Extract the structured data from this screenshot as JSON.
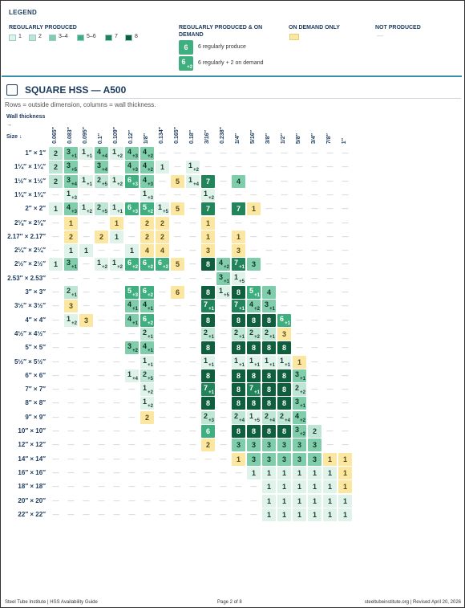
{
  "legend": {
    "title": "LEGEND",
    "regular": {
      "title": "REGULARLY PRODUCED",
      "items": [
        "1",
        "2",
        "3–4",
        "5–6",
        "7",
        "8"
      ]
    },
    "combined": {
      "title": "REGULARLY PRODUCED & ON DEMAND",
      "examples": [
        {
          "main": "6",
          "text": "6 regularly produce"
        },
        {
          "main": "6",
          "extra": "+2",
          "text": "6 regularly + 2 on demand"
        }
      ]
    },
    "on_demand": {
      "title": "ON DEMAND ONLY"
    },
    "not_produced": {
      "title": "NOT PRODUCED",
      "symbol": "—"
    }
  },
  "section": {
    "title": "SQUARE HSS — A500",
    "subtitle": "Rows = outside dimension, columns = wall thickness.",
    "wall_label": "Wall thickness →",
    "size_label": "Size ↓",
    "columns": [
      "0.065″",
      "0.083″",
      "0.095″",
      "0.1″",
      "0.109″",
      "0.12″",
      "1/8″",
      "0.134″",
      "0.165″",
      "0.18″",
      "3/16″",
      "0.238″",
      "1/4″",
      "5/16″",
      "3/8″",
      "1/2″",
      "5/8″",
      "3/4″",
      "7/8″",
      "1″"
    ],
    "rows": [
      {
        "label": "1″ × 1″",
        "cells": [
          [
            "2"
          ],
          [
            "3",
            "+1"
          ],
          [
            "1",
            "+1"
          ],
          [
            "4",
            "+4"
          ],
          [
            "1",
            "+2"
          ],
          [
            "4",
            "+3"
          ],
          [
            "4",
            "+2"
          ],
          "—",
          "—",
          "—",
          "—",
          "—",
          "—",
          "—",
          "—",
          "—",
          "—",
          "—",
          "—",
          "—"
        ]
      },
      {
        "label": "1¼″ × 1¼″",
        "cells": [
          [
            "2"
          ],
          [
            "3",
            "+5"
          ],
          "—",
          [
            "3",
            "+4"
          ],
          "—",
          [
            "4",
            "+3"
          ],
          [
            "4",
            "+2"
          ],
          [
            "1"
          ],
          "—",
          [
            "1",
            "+2"
          ],
          "—",
          "—",
          "—",
          "—",
          "—",
          "—",
          "—",
          "—",
          "—",
          "—"
        ]
      },
      {
        "label": "1½″ × 1½″",
        "cells": [
          [
            "2"
          ],
          [
            "3",
            "+4"
          ],
          [
            "1",
            "+1"
          ],
          [
            "2",
            "+5"
          ],
          [
            "1",
            "+2"
          ],
          [
            "6",
            "+3"
          ],
          [
            "4",
            "+3"
          ],
          "—",
          {
            "only": "5"
          },
          [
            "1",
            "+4"
          ],
          [
            "7"
          ],
          "—",
          [
            "4"
          ],
          "—",
          "—",
          "—",
          "—",
          "—",
          "—",
          "—"
        ]
      },
      {
        "label": "1¾″ × 1¾″",
        "cells": [
          "—",
          [
            "1",
            "+3"
          ],
          "—",
          "—",
          "—",
          "—",
          [
            "1",
            "+3"
          ],
          "—",
          "—",
          "—",
          [
            "1",
            "+2"
          ],
          "—",
          "—",
          "—",
          "—",
          "—",
          "—",
          "—",
          "—",
          "—"
        ]
      },
      {
        "label": "2″ × 2″",
        "cells": [
          [
            "1"
          ],
          [
            "4",
            "+3"
          ],
          [
            "1",
            "+2"
          ],
          [
            "2",
            "+5"
          ],
          [
            "1",
            "+1"
          ],
          [
            "6",
            "+3"
          ],
          [
            "5",
            "+2"
          ],
          [
            "1",
            "+5"
          ],
          {
            "only": "5"
          },
          "—",
          [
            "7"
          ],
          "—",
          [
            "7"
          ],
          {
            "only": "1"
          },
          "—",
          "—",
          "—",
          "—",
          "—",
          "—"
        ]
      },
      {
        "label": "2⅛″ × 2⅛″",
        "cells": [
          "—",
          {
            "only": "1"
          },
          "—",
          "—",
          {
            "only": "1"
          },
          "—",
          {
            "only": "2"
          },
          {
            "only": "2"
          },
          "—",
          "—",
          {
            "only": "1"
          },
          "—",
          "—",
          "—",
          "—",
          "—",
          "—",
          "—",
          "—",
          "—"
        ]
      },
      {
        "label": "2.17″ × 2.17″",
        "cells": [
          "—",
          {
            "only": "2"
          },
          "—",
          {
            "only": "2"
          },
          [
            "1"
          ],
          "—",
          {
            "only": "2"
          },
          {
            "only": "2"
          },
          "—",
          "—",
          {
            "only": "1"
          },
          "—",
          {
            "only": "1"
          },
          "—",
          "—",
          "—",
          "—",
          "—",
          "—",
          "—"
        ]
      },
      {
        "label": "2¼″ × 2¼″",
        "cells": [
          "—",
          [
            "1"
          ],
          [
            "1"
          ],
          "—",
          "—",
          [
            "1"
          ],
          {
            "only": "4"
          },
          {
            "only": "4"
          },
          "—",
          "—",
          {
            "only": "3"
          },
          "—",
          {
            "only": "3"
          },
          "—",
          "—",
          "—",
          "—",
          "—",
          "—",
          "—"
        ]
      },
      {
        "label": "2½″ × 2½″",
        "cells": [
          [
            "1"
          ],
          [
            "3",
            "+1"
          ],
          "—",
          [
            "1",
            "+2"
          ],
          [
            "1",
            "+2"
          ],
          [
            "6",
            "+2"
          ],
          [
            "6",
            "+2"
          ],
          [
            "6",
            "+2"
          ],
          {
            "only": "5"
          },
          "—",
          [
            "8"
          ],
          [
            "4",
            "+2"
          ],
          [
            "7",
            "+1"
          ],
          [
            "3"
          ],
          "—",
          "—",
          "—",
          "—",
          "—",
          "—"
        ]
      },
      {
        "label": "2.53″ × 2.53″",
        "cells": [
          "—",
          "—",
          "—",
          "—",
          "—",
          "—",
          "—",
          "—",
          "—",
          "—",
          "—",
          [
            "3",
            "+1"
          ],
          [
            "1",
            "+5"
          ],
          "—",
          "—",
          "—",
          "—",
          "—",
          "—",
          "—"
        ]
      },
      {
        "label": "3″ × 3″",
        "cells": [
          "—",
          [
            "2",
            "+1"
          ],
          "—",
          "—",
          "—",
          [
            "5",
            "+3"
          ],
          [
            "6",
            "+2"
          ],
          "—",
          {
            "only": "6"
          },
          "—",
          [
            "8"
          ],
          [
            "1",
            "+5"
          ],
          [
            "8"
          ],
          [
            "5",
            "+1"
          ],
          [
            "4"
          ],
          "—",
          "—",
          "—",
          "—",
          "—"
        ]
      },
      {
        "label": "3½″ × 3½″",
        "cells": [
          "—",
          {
            "only": "3"
          },
          "—",
          "—",
          "—",
          [
            "4",
            "+1"
          ],
          [
            "4",
            "+1"
          ],
          "—",
          "—",
          "—",
          [
            "7",
            "+1"
          ],
          "—",
          [
            "7",
            "+1"
          ],
          [
            "4",
            "+2"
          ],
          [
            "3",
            "+1"
          ],
          "—",
          "—",
          "—",
          "—",
          "—"
        ]
      },
      {
        "label": "4″ × 4″",
        "cells": [
          "—",
          [
            "1",
            "+2"
          ],
          {
            "only": "3"
          },
          "—",
          "—",
          [
            "4",
            "+1"
          ],
          [
            "6",
            "+2"
          ],
          "—",
          "—",
          "—",
          [
            "8"
          ],
          "—",
          [
            "8"
          ],
          [
            "8"
          ],
          [
            "8"
          ],
          [
            "6",
            "+1"
          ],
          "—",
          "—",
          "—",
          "—"
        ]
      },
      {
        "label": "4½″ × 4½″",
        "cells": [
          "—",
          "—",
          "—",
          "—",
          "—",
          "—",
          [
            "2",
            "+1"
          ],
          "—",
          "—",
          "—",
          [
            "2",
            "+1"
          ],
          "—",
          [
            "2",
            "+1"
          ],
          [
            "2",
            "+2"
          ],
          [
            "2",
            "+1"
          ],
          {
            "only": "3"
          },
          "—",
          "—",
          "—",
          "—"
        ]
      },
      {
        "label": "5″ × 5″",
        "cells": [
          "—",
          "—",
          "—",
          "—",
          "—",
          [
            "3",
            "+2"
          ],
          [
            "4",
            "+1"
          ],
          "—",
          "—",
          "—",
          [
            "8"
          ],
          "—",
          [
            "8"
          ],
          [
            "8"
          ],
          [
            "8"
          ],
          [
            "8"
          ],
          "—",
          "—",
          "—",
          "—"
        ]
      },
      {
        "label": "5½″ × 5½″",
        "cells": [
          "—",
          "—",
          "—",
          "—",
          "—",
          "—",
          [
            "1",
            "+1"
          ],
          "—",
          "—",
          "—",
          [
            "1",
            "+1"
          ],
          "—",
          [
            "1",
            "+1"
          ],
          [
            "1",
            "+1"
          ],
          [
            "1",
            "+1"
          ],
          [
            "1",
            "+1"
          ],
          {
            "only": "1"
          },
          "—",
          "—",
          "—"
        ]
      },
      {
        "label": "6″ × 6″",
        "cells": [
          "—",
          "—",
          "—",
          "—",
          "—",
          [
            "1",
            "+4"
          ],
          [
            "2",
            "+5"
          ],
          "—",
          "—",
          "—",
          [
            "8"
          ],
          "—",
          [
            "8"
          ],
          [
            "8"
          ],
          [
            "8"
          ],
          [
            "8"
          ],
          [
            "3",
            "+1"
          ],
          "—",
          "—",
          "—"
        ]
      },
      {
        "label": "7″ × 7″",
        "cells": [
          "—",
          "—",
          "—",
          "—",
          "—",
          "—",
          [
            "1",
            "+2"
          ],
          "—",
          "—",
          "—",
          [
            "7",
            "+1"
          ],
          "—",
          [
            "8"
          ],
          [
            "7",
            "+1"
          ],
          [
            "8"
          ],
          [
            "8"
          ],
          [
            "2",
            "+2"
          ],
          "—",
          "—",
          "—"
        ]
      },
      {
        "label": "8″ × 8″",
        "cells": [
          "—",
          "—",
          "—",
          "—",
          "—",
          "—",
          [
            "1",
            "+2"
          ],
          "—",
          "—",
          "—",
          [
            "8"
          ],
          "—",
          [
            "8"
          ],
          [
            "8"
          ],
          [
            "8"
          ],
          [
            "8"
          ],
          [
            "3",
            "+1"
          ],
          "—",
          "—",
          "—"
        ]
      },
      {
        "label": "9″ × 9″",
        "cells": [
          "—",
          "—",
          "—",
          "—",
          "—",
          "—",
          {
            "only": "2"
          },
          "—",
          "—",
          "—",
          [
            "2",
            "+3"
          ],
          "—",
          [
            "2",
            "+4"
          ],
          [
            "1",
            "+5"
          ],
          [
            "2",
            "+4"
          ],
          [
            "2",
            "+4"
          ],
          [
            "4",
            "+2"
          ],
          "—",
          "—",
          "—"
        ]
      },
      {
        "label": "10″ × 10″",
        "cells": [
          "—",
          "—",
          "—",
          "—",
          "—",
          "—",
          "—",
          "—",
          "—",
          "—",
          [
            "6"
          ],
          "—",
          [
            "8"
          ],
          [
            "8"
          ],
          [
            "8"
          ],
          [
            "8"
          ],
          [
            "3",
            "+2"
          ],
          [
            "2"
          ],
          "—",
          "—"
        ]
      },
      {
        "label": "12″ × 12″",
        "cells": [
          "—",
          "—",
          "—",
          "—",
          "—",
          "—",
          "—",
          "—",
          "—",
          "—",
          {
            "only": "2"
          },
          "—",
          [
            "3"
          ],
          [
            "3"
          ],
          [
            "3"
          ],
          [
            "3"
          ],
          [
            "3"
          ],
          [
            "3"
          ],
          "—",
          "—"
        ]
      },
      {
        "label": "14″ × 14″",
        "cells": [
          "—",
          "—",
          "—",
          "—",
          "—",
          "—",
          "—",
          "—",
          "—",
          "—",
          "—",
          "—",
          {
            "only": "1"
          },
          [
            "3"
          ],
          [
            "3"
          ],
          [
            "3"
          ],
          [
            "3"
          ],
          [
            "3"
          ],
          {
            "only": "1"
          },
          {
            "only": "1"
          }
        ]
      },
      {
        "label": "16″ × 16″",
        "cells": [
          "—",
          "—",
          "—",
          "—",
          "—",
          "—",
          "—",
          "—",
          "—",
          "—",
          "—",
          "—",
          "—",
          [
            "1"
          ],
          [
            "1"
          ],
          [
            "1"
          ],
          [
            "1"
          ],
          [
            "1"
          ],
          [
            "1"
          ],
          {
            "only": "1"
          }
        ]
      },
      {
        "label": "18″ × 18″",
        "cells": [
          "—",
          "—",
          "—",
          "—",
          "—",
          "—",
          "—",
          "—",
          "—",
          "—",
          "—",
          "—",
          "—",
          "—",
          [
            "1"
          ],
          [
            "1"
          ],
          [
            "1"
          ],
          [
            "1"
          ],
          [
            "1"
          ],
          {
            "only": "1"
          }
        ]
      },
      {
        "label": "20″ × 20″",
        "cells": [
          "—",
          "—",
          "—",
          "—",
          "—",
          "—",
          "—",
          "—",
          "—",
          "—",
          "—",
          "—",
          "—",
          "—",
          [
            "1"
          ],
          [
            "1"
          ],
          [
            "1"
          ],
          [
            "1"
          ],
          [
            "1"
          ],
          [
            "1"
          ]
        ]
      },
      {
        "label": "22″ × 22″",
        "cells": [
          "—",
          "—",
          "—",
          "—",
          "—",
          "—",
          "—",
          "—",
          "—",
          "—",
          "—",
          "—",
          "—",
          "—",
          [
            "1"
          ],
          [
            "1"
          ],
          [
            "1"
          ],
          [
            "1"
          ],
          [
            "1"
          ],
          [
            "1"
          ]
        ]
      }
    ]
  },
  "footer": {
    "left": "Steel Tube Institute | HSS Availability Guide",
    "center": "Page 2 of 8",
    "right": "steeltubeinstitute.org | Revised April 20, 2026"
  }
}
